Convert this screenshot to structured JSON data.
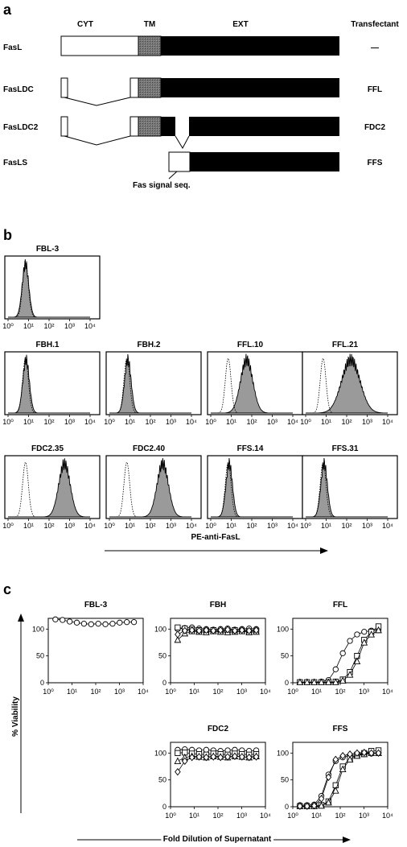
{
  "panel_a": {
    "letter": "a",
    "headers": {
      "cyt": "CYT",
      "tm": "TM",
      "ext": "EXT",
      "transfectant": "Transfectant"
    },
    "constructs": [
      {
        "name": "FasL",
        "transfectant": "—"
      },
      {
        "name": "FasLDC",
        "transfectant": "FFL"
      },
      {
        "name": "FasLDC2",
        "transfectant": "FDC2"
      },
      {
        "name": "FasLS",
        "transfectant": "FFS"
      }
    ],
    "signal_label": "Fas signal seq."
  },
  "panel_b": {
    "letter": "b",
    "xlabel": "PE-anti-FasL",
    "tick_labels": [
      "10⁰",
      "10¹",
      "10²",
      "10³",
      "10⁴"
    ],
    "histograms": [
      {
        "title": "FBL-3",
        "control_peak": 0.85,
        "stained_peak": 0.85,
        "stained_width": 0.16
      },
      {
        "title": "FBH.1",
        "control_peak": 0.85,
        "stained_peak": 0.88,
        "stained_width": 0.16
      },
      {
        "title": "FBH.2",
        "control_peak": 0.85,
        "stained_peak": 0.9,
        "stained_width": 0.16
      },
      {
        "title": "FFL.10",
        "control_peak": 0.85,
        "stained_peak": 1.75,
        "stained_width": 0.3
      },
      {
        "title": "FFL.21",
        "control_peak": 0.85,
        "stained_peak": 2.2,
        "stained_width": 0.45
      },
      {
        "title": "FDC2.35",
        "control_peak": 0.85,
        "stained_peak": 2.75,
        "stained_width": 0.28
      },
      {
        "title": "FDC2.40",
        "control_peak": 0.85,
        "stained_peak": 2.6,
        "stained_width": 0.28
      },
      {
        "title": "FFS.14",
        "control_peak": 0.85,
        "stained_peak": 0.9,
        "stained_width": 0.16
      },
      {
        "title": "FFS.31",
        "control_peak": 0.85,
        "stained_peak": 0.9,
        "stained_width": 0.16
      }
    ]
  },
  "chart_data": [
    {
      "type": "scatter",
      "title": "FBL-3",
      "xlabel": "Fold Dilution of Supernatant",
      "ylabel": "% Viability",
      "x_scale": "log",
      "xlim": [
        1,
        10000
      ],
      "ylim": [
        0,
        120
      ],
      "x_ticks": [
        "10⁰",
        "10¹",
        "10²",
        "10³",
        "10⁴"
      ],
      "y_ticks": [
        "0",
        "50",
        "100"
      ],
      "series": [
        {
          "marker": "circle",
          "x": [
            2,
            4,
            8,
            16,
            32,
            64,
            128,
            256,
            512,
            1024,
            2048,
            4096
          ],
          "y": [
            118,
            117,
            114,
            112,
            110,
            109,
            110,
            109,
            110,
            112,
            113,
            113
          ]
        }
      ]
    },
    {
      "type": "scatter",
      "title": "FBH",
      "xlabel": "Fold Dilution of Supernatant",
      "ylabel": "% Viability",
      "x_scale": "log",
      "xlim": [
        1,
        10000
      ],
      "ylim": [
        0,
        120
      ],
      "x_ticks": [
        "10⁰",
        "10¹",
        "10²",
        "10³",
        "10⁴"
      ],
      "y_ticks": [
        "0",
        "50",
        "100"
      ],
      "series": [
        {
          "marker": "circle",
          "x": [
            2,
            4,
            8,
            16,
            32,
            64,
            128,
            256,
            512,
            1024,
            2048,
            4096
          ],
          "y": [
            100,
            102,
            103,
            101,
            100,
            99,
            100,
            101,
            99,
            100,
            101,
            100
          ]
        },
        {
          "marker": "square",
          "x": [
            2,
            4,
            8,
            16,
            32,
            64,
            128,
            256,
            512,
            1024,
            2048,
            4096
          ],
          "y": [
            103,
            101,
            99,
            98,
            97,
            98,
            96,
            97,
            98,
            97,
            96,
            97
          ]
        },
        {
          "marker": "triangle",
          "x": [
            2,
            4,
            8,
            16,
            32,
            64,
            128,
            256,
            512,
            1024,
            2048,
            4096
          ],
          "y": [
            80,
            92,
            96,
            95,
            94,
            96,
            95,
            94,
            95,
            96,
            94,
            95
          ]
        },
        {
          "marker": "diamond",
          "x": [
            2,
            4,
            8,
            16,
            32,
            64,
            128,
            256,
            512,
            1024,
            2048,
            4096
          ],
          "y": [
            90,
            97,
            98,
            97,
            98,
            97,
            98,
            99,
            97,
            98,
            97,
            98
          ]
        }
      ]
    },
    {
      "type": "scatter",
      "title": "FFL",
      "xlabel": "Fold Dilution of Supernatant",
      "ylabel": "% Viability",
      "x_scale": "log",
      "xlim": [
        1,
        10000
      ],
      "ylim": [
        0,
        120
      ],
      "x_ticks": [
        "10⁰",
        "10¹",
        "10²",
        "10³",
        "10⁴"
      ],
      "y_ticks": [
        "0",
        "50",
        "100"
      ],
      "series": [
        {
          "marker": "circle",
          "x": [
            2,
            4,
            8,
            16,
            32,
            64,
            128,
            256,
            512,
            1024,
            2048,
            4096
          ],
          "y": [
            1,
            1,
            1,
            2,
            5,
            25,
            55,
            78,
            90,
            95,
            97,
            98
          ]
        },
        {
          "marker": "square",
          "x": [
            2,
            4,
            8,
            16,
            32,
            64,
            128,
            256,
            512,
            1024,
            2048,
            4096
          ],
          "y": [
            1,
            1,
            1,
            1,
            1,
            2,
            6,
            20,
            50,
            80,
            95,
            105
          ]
        },
        {
          "marker": "triangle",
          "x": [
            2,
            4,
            8,
            16,
            32,
            64,
            128,
            256,
            512,
            1024,
            2048,
            4096
          ],
          "y": [
            1,
            1,
            1,
            1,
            1,
            1,
            4,
            15,
            40,
            75,
            90,
            98
          ]
        }
      ]
    },
    {
      "type": "scatter",
      "title": "FDC2",
      "xlabel": "Fold Dilution of Supernatant",
      "ylabel": "% Viability",
      "x_scale": "log",
      "xlim": [
        1,
        10000
      ],
      "ylim": [
        0,
        120
      ],
      "x_ticks": [
        "10⁰",
        "10¹",
        "10²",
        "10³",
        "10⁴"
      ],
      "y_ticks": [
        "0",
        "50",
        "100"
      ],
      "series": [
        {
          "marker": "circle",
          "x": [
            2,
            4,
            8,
            16,
            32,
            64,
            128,
            256,
            512,
            1024,
            2048,
            4096
          ],
          "y": [
            106,
            107,
            106,
            105,
            106,
            105,
            104,
            105,
            106,
            105,
            104,
            105
          ]
        },
        {
          "marker": "square",
          "x": [
            2,
            4,
            8,
            16,
            32,
            64,
            128,
            256,
            512,
            1024,
            2048,
            4096
          ],
          "y": [
            100,
            101,
            99,
            98,
            97,
            99,
            98,
            97,
            99,
            98,
            97,
            98
          ]
        },
        {
          "marker": "triangle",
          "x": [
            2,
            4,
            8,
            16,
            32,
            64,
            128,
            256,
            512,
            1024,
            2048,
            4096
          ],
          "y": [
            85,
            92,
            94,
            93,
            92,
            94,
            93,
            92,
            94,
            93,
            92,
            94
          ]
        },
        {
          "marker": "diamond",
          "x": [
            2,
            4,
            8,
            16,
            32,
            64,
            128,
            256,
            512,
            1024,
            2048,
            4096
          ],
          "y": [
            65,
            85,
            92,
            93,
            92,
            93,
            92,
            93,
            94,
            93,
            92,
            93
          ]
        }
      ]
    },
    {
      "type": "scatter",
      "title": "FFS",
      "xlabel": "Fold Dilution of Supernatant",
      "ylabel": "% Viability",
      "x_scale": "log",
      "xlim": [
        1,
        10000
      ],
      "ylim": [
        0,
        120
      ],
      "x_ticks": [
        "10⁰",
        "10¹",
        "10²",
        "10³",
        "10⁴"
      ],
      "y_ticks": [
        "0",
        "50",
        "100"
      ],
      "series": [
        {
          "marker": "circle",
          "x": [
            2,
            4,
            8,
            16,
            32,
            64,
            128,
            256,
            512,
            1024,
            2048,
            4096
          ],
          "y": [
            3,
            3,
            4,
            20,
            60,
            85,
            92,
            95,
            97,
            98,
            99,
            100
          ]
        },
        {
          "marker": "square",
          "x": [
            2,
            4,
            8,
            16,
            32,
            64,
            128,
            256,
            512,
            1024,
            2048,
            4096
          ],
          "y": [
            1,
            1,
            1,
            3,
            10,
            40,
            75,
            90,
            97,
            100,
            104,
            105
          ]
        },
        {
          "marker": "triangle",
          "x": [
            2,
            4,
            8,
            16,
            32,
            64,
            128,
            256,
            512,
            1024,
            2048,
            4096
          ],
          "y": [
            1,
            1,
            1,
            2,
            8,
            30,
            70,
            88,
            95,
            98,
            100,
            100
          ]
        },
        {
          "marker": "diamond",
          "x": [
            2,
            4,
            8,
            16,
            32,
            64,
            128,
            256,
            512,
            1024,
            2048,
            4096
          ],
          "y": [
            1,
            1,
            2,
            15,
            55,
            88,
            95,
            98,
            100,
            101,
            100,
            100
          ]
        }
      ]
    }
  ]
}
